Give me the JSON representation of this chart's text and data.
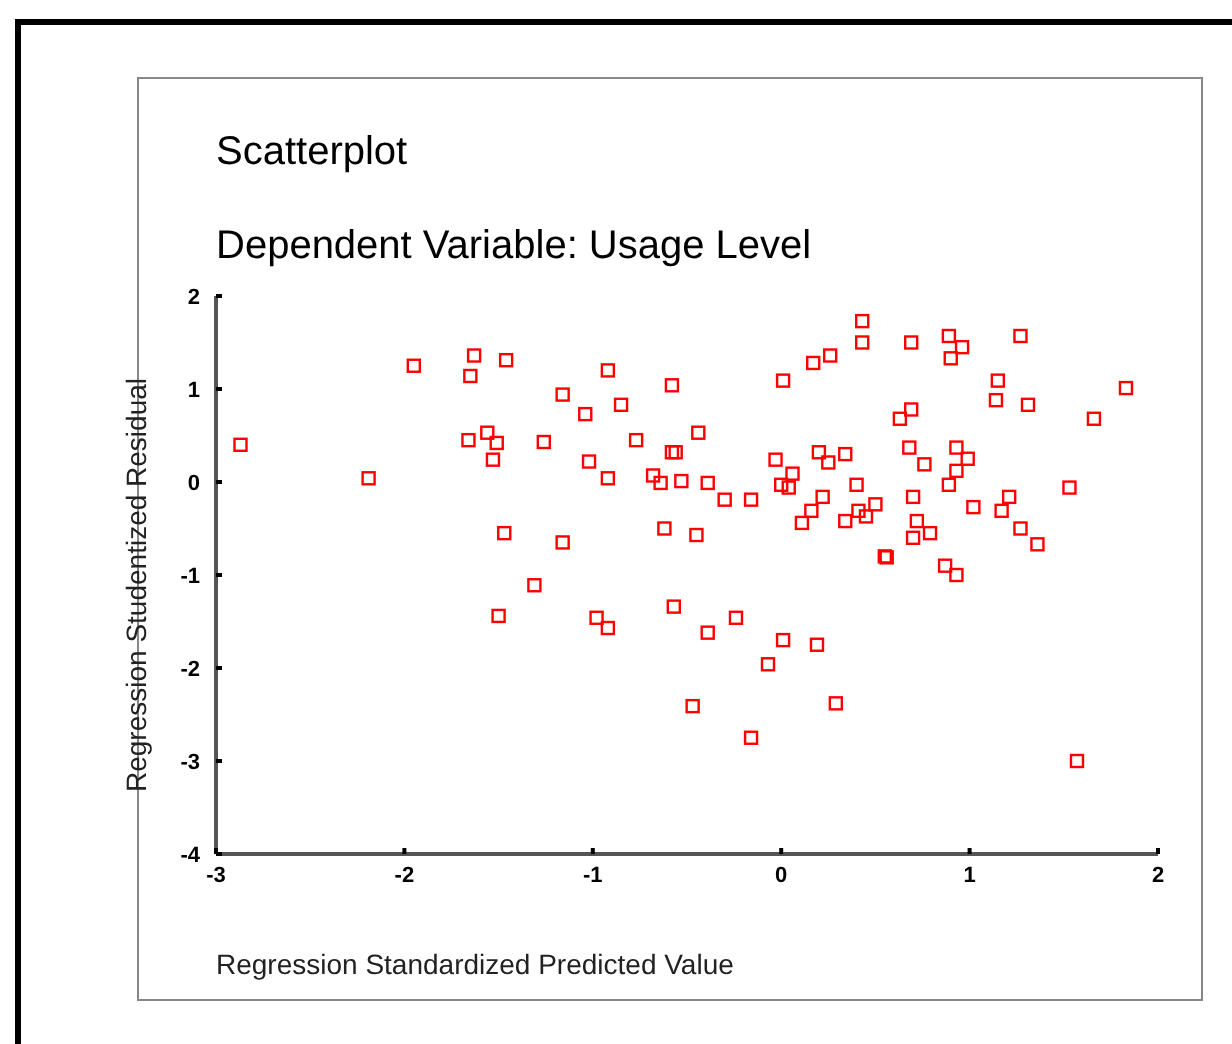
{
  "chart_data": {
    "type": "scatter",
    "title": "Scatterplot",
    "subtitle": "Dependent Variable: Usage Level",
    "xlabel": "Regression Standardized Predicted Value",
    "ylabel": "Regression Studentized Residual",
    "xlim": [
      -3,
      2
    ],
    "ylim": [
      -4,
      2
    ],
    "xticks": [
      -3,
      -2,
      -1,
      0,
      1,
      2
    ],
    "yticks": [
      -4,
      -3,
      -2,
      -1,
      0,
      1,
      2
    ],
    "marker": "square",
    "series": [
      {
        "color": "#ff0000",
        "x": [
          -2.87,
          -2.19,
          -1.95,
          -1.63,
          -1.65,
          -1.46,
          -1.66,
          -1.56,
          -1.51,
          -1.53,
          -1.47,
          -1.31,
          -1.5,
          -1.26,
          -1.16,
          -0.92,
          -1.04,
          -0.85,
          -0.58,
          -1.02,
          -0.92,
          -0.77,
          -0.44,
          -0.58,
          -0.56,
          -0.68,
          -0.64,
          -0.53,
          -0.39,
          -0.3,
          -0.16,
          -1.16,
          -0.62,
          -0.45,
          -0.98,
          -0.92,
          -0.57,
          -0.39,
          -0.24,
          0.01,
          0.19,
          -0.07,
          -0.47,
          0.29,
          -0.16,
          0.01,
          0.17,
          0.26,
          -0.03,
          0.06,
          0.0,
          0.04,
          0.2,
          0.25,
          0.34,
          0.22,
          0.16,
          0.11,
          0.34,
          0.43,
          0.43,
          0.69,
          0.89,
          0.96,
          0.9,
          1.27,
          1.15,
          1.14,
          1.31,
          1.83,
          1.66,
          0.69,
          0.63,
          0.68,
          0.76,
          0.93,
          0.99,
          0.93,
          0.4,
          0.89,
          0.7,
          1.21,
          1.53,
          0.41,
          0.45,
          0.5,
          1.02,
          1.17,
          0.72,
          0.7,
          0.79,
          1.27,
          1.36,
          0.55,
          0.56,
          0.87,
          0.93,
          1.57
        ],
        "values": [
          0.4,
          0.04,
          1.25,
          1.36,
          1.14,
          1.31,
          0.45,
          0.53,
          0.42,
          0.24,
          -0.55,
          -1.11,
          -1.44,
          0.43,
          0.94,
          1.2,
          0.73,
          0.83,
          1.04,
          0.22,
          0.04,
          0.45,
          0.53,
          0.32,
          0.32,
          0.07,
          -0.01,
          0.01,
          -0.01,
          -0.19,
          -0.19,
          -0.65,
          -0.5,
          -0.57,
          -1.46,
          -1.57,
          -1.34,
          -1.62,
          -1.46,
          -1.7,
          -1.75,
          -1.96,
          -2.41,
          -2.38,
          -2.75,
          1.09,
          1.28,
          1.36,
          0.24,
          0.09,
          -0.03,
          -0.06,
          0.32,
          0.21,
          0.3,
          -0.16,
          -0.31,
          -0.44,
          -0.42,
          1.73,
          1.5,
          1.5,
          1.57,
          1.45,
          1.33,
          1.57,
          1.09,
          0.88,
          0.83,
          1.01,
          0.68,
          0.78,
          0.68,
          0.37,
          0.19,
          0.37,
          0.25,
          0.12,
          -0.03,
          -0.03,
          -0.16,
          -0.16,
          -0.06,
          -0.31,
          -0.37,
          -0.24,
          -0.27,
          -0.31,
          -0.42,
          -0.6,
          -0.55,
          -0.5,
          -0.67,
          -0.8,
          -0.81,
          -0.9,
          -1.0,
          -3.0
        ]
      }
    ]
  }
}
